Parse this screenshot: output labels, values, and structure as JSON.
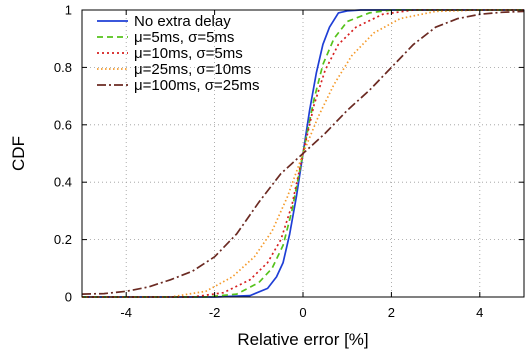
{
  "chart_data": {
    "type": "line",
    "xlabel": "Relative error [%]",
    "ylabel": "CDF",
    "xlim": [
      -5,
      5
    ],
    "ylim": [
      0,
      1
    ],
    "xticks": [
      "-4",
      "-2",
      "0",
      "2",
      "4"
    ],
    "xtick_values": [
      -4,
      -2,
      0,
      2,
      4
    ],
    "yticks": [
      "0",
      "0.2",
      "0.4",
      "0.6",
      "0.8",
      "1"
    ],
    "ytick_values": [
      0,
      0.2,
      0.4,
      0.6,
      0.8,
      1
    ],
    "grid": true,
    "legend_position": "top-left",
    "series": [
      {
        "name": "No extra delay",
        "color": "#1f3fd6",
        "dash": "solid",
        "x": [
          -5,
          -2,
          -1.2,
          -0.8,
          -0.6,
          -0.45,
          -0.3,
          -0.15,
          0,
          0.15,
          0.3,
          0.45,
          0.6,
          0.8,
          1.0,
          1.3,
          1.8,
          5
        ],
        "y": [
          0,
          0,
          0.005,
          0.03,
          0.07,
          0.12,
          0.22,
          0.35,
          0.5,
          0.65,
          0.78,
          0.88,
          0.94,
          0.99,
          0.997,
          1,
          1,
          1
        ]
      },
      {
        "name": "μ=5ms, σ=5ms",
        "color": "#55c21b",
        "dash": "6,4",
        "x": [
          -5,
          -2.2,
          -1.5,
          -1.0,
          -0.7,
          -0.45,
          -0.25,
          0,
          0.25,
          0.45,
          0.7,
          1.0,
          1.5,
          2.0,
          5
        ],
        "y": [
          0,
          0,
          0.01,
          0.05,
          0.1,
          0.18,
          0.3,
          0.5,
          0.69,
          0.81,
          0.9,
          0.96,
          0.99,
          1,
          1
        ]
      },
      {
        "name": "μ=10ms, σ=5ms",
        "color": "#d61f1f",
        "dash": "2,3",
        "x": [
          -5,
          -2.5,
          -1.8,
          -1.2,
          -0.8,
          -0.5,
          -0.25,
          0,
          0.25,
          0.5,
          0.8,
          1.2,
          1.8,
          2.5,
          5
        ],
        "y": [
          0,
          0,
          0.015,
          0.06,
          0.12,
          0.2,
          0.32,
          0.5,
          0.67,
          0.79,
          0.88,
          0.94,
          0.985,
          1,
          1
        ]
      },
      {
        "name": "μ=25ms, σ=10ms",
        "color": "#f59a2a",
        "dash": "1.5,2.5",
        "x": [
          -5,
          -3.0,
          -2.2,
          -1.6,
          -1.1,
          -0.7,
          -0.35,
          0,
          0.35,
          0.7,
          1.1,
          1.6,
          2.2,
          3.0,
          4.0,
          5
        ],
        "y": [
          0,
          0,
          0.02,
          0.07,
          0.14,
          0.23,
          0.35,
          0.5,
          0.63,
          0.74,
          0.84,
          0.92,
          0.97,
          0.995,
          1,
          1
        ]
      },
      {
        "name": "μ=100ms, σ=25ms",
        "color": "#6b2a22",
        "dash": "9,3,2,3",
        "x": [
          -5,
          -4.5,
          -4.0,
          -3.5,
          -3.0,
          -2.5,
          -2.0,
          -1.5,
          -1.0,
          -0.5,
          0,
          0.5,
          1.0,
          1.5,
          2.0,
          2.5,
          3.0,
          3.5,
          4.0,
          4.5,
          5
        ],
        "y": [
          0.01,
          0.012,
          0.02,
          0.035,
          0.06,
          0.09,
          0.14,
          0.22,
          0.33,
          0.43,
          0.5,
          0.57,
          0.65,
          0.72,
          0.8,
          0.88,
          0.94,
          0.97,
          0.985,
          0.992,
          0.995
        ]
      }
    ]
  }
}
